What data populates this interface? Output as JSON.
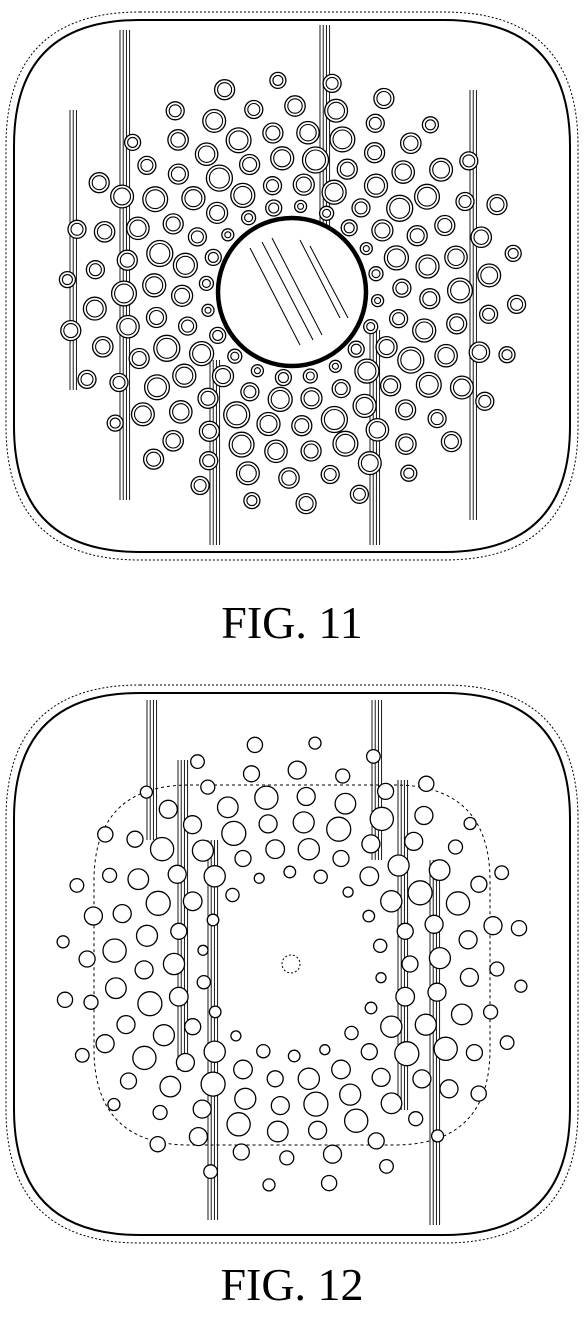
{
  "figures": [
    {
      "caption": "FIG. 11"
    },
    {
      "caption": "FIG. 12"
    }
  ],
  "colors": {
    "line": "#000000",
    "background": "#ffffff"
  }
}
